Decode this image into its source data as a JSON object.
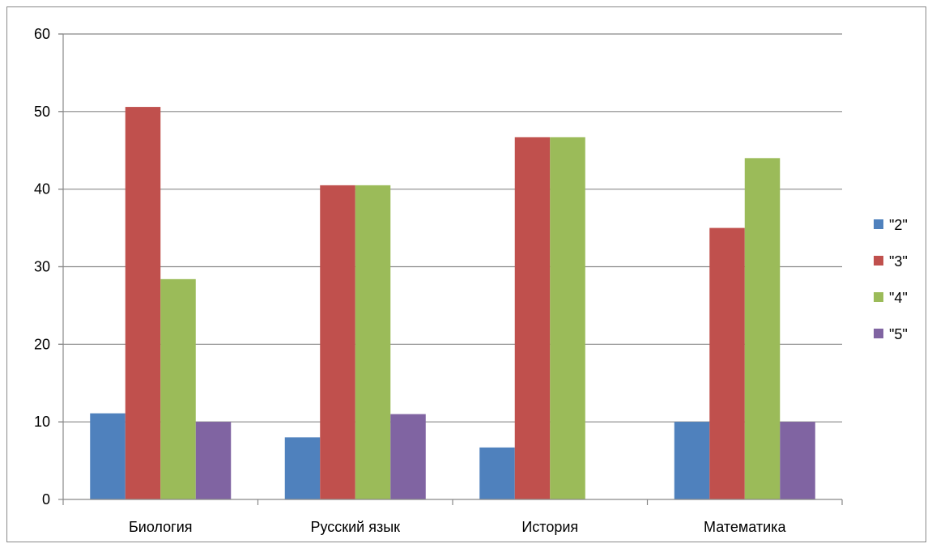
{
  "chart_data": {
    "type": "bar",
    "title": "",
    "xlabel": "",
    "ylabel": "",
    "categories": [
      "Биология",
      "Русский язык",
      "История",
      "Математика"
    ],
    "ylim": [
      0,
      60
    ],
    "yticks": [
      0,
      10,
      20,
      30,
      40,
      50,
      60
    ],
    "grid": true,
    "legend_position": "right",
    "series": [
      {
        "name": "\"2\"",
        "color": "#4f81bd",
        "values": [
          11.1,
          8,
          6.7,
          10
        ]
      },
      {
        "name": "\"3\"",
        "color": "#c0504d",
        "values": [
          50.6,
          40.5,
          46.7,
          35
        ]
      },
      {
        "name": "\"4\"",
        "color": "#9bbb59",
        "values": [
          28.4,
          40.5,
          46.7,
          44
        ]
      },
      {
        "name": "\"5\"",
        "color": "#8064a2",
        "values": [
          10,
          11,
          0,
          10
        ]
      }
    ]
  }
}
